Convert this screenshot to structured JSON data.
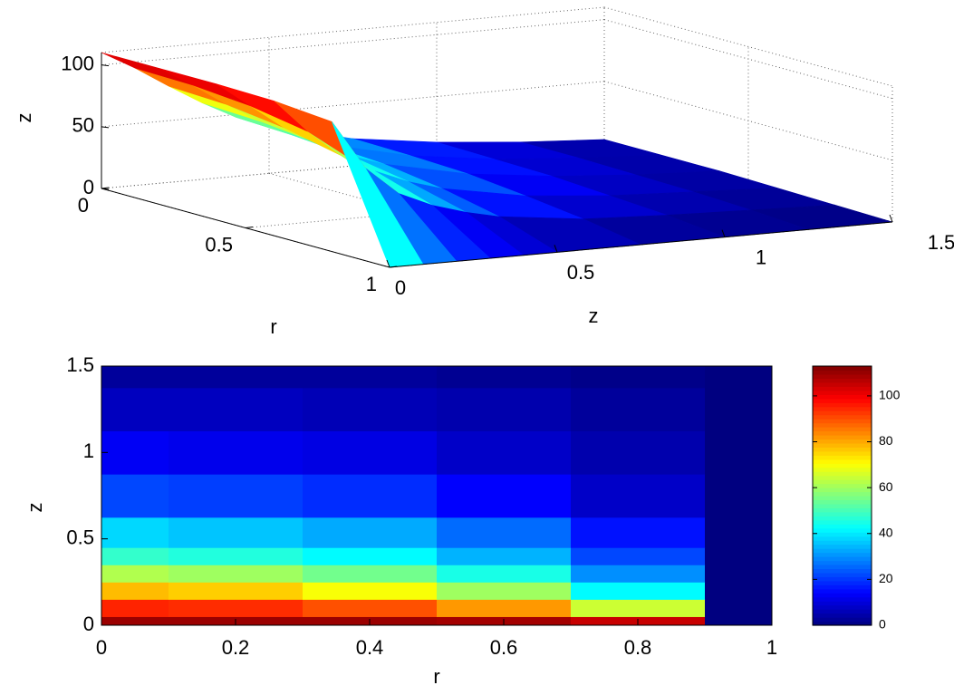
{
  "chart_data": [
    {
      "type": "surface3d",
      "xlabel": "r",
      "ylabel": "z",
      "zlabel": "z",
      "x": [
        0,
        0.2,
        0.4,
        0.6,
        0.8,
        1
      ],
      "y": [
        0,
        0.1,
        0.2,
        0.3,
        0.4,
        0.5,
        0.75,
        1,
        1.25,
        1.5
      ],
      "values": [
        [
          110,
          110,
          110,
          109,
          105,
          0
        ],
        [
          95,
          94,
          90,
          82,
          65,
          0
        ],
        [
          78,
          76,
          70,
          60,
          42,
          0
        ],
        [
          62,
          60,
          55,
          45,
          30,
          0
        ],
        [
          48,
          46,
          42,
          34,
          22,
          0
        ],
        [
          38,
          36,
          33,
          26,
          16,
          0
        ],
        [
          22,
          21,
          19,
          14,
          8,
          0
        ],
        [
          13,
          12,
          11,
          8,
          5,
          0
        ],
        [
          7,
          7,
          6,
          5,
          3,
          0
        ],
        [
          3,
          3,
          3,
          2,
          1,
          0
        ]
      ],
      "xlim": [
        0,
        1
      ],
      "ylim": [
        0,
        1.5
      ],
      "zlim": [
        0,
        110
      ],
      "xticks": [
        0,
        0.5,
        1
      ],
      "yticks": [
        0,
        0.5,
        1,
        1.5
      ],
      "zticks": [
        0,
        50,
        100
      ],
      "colormap": "jet",
      "clim": [
        0,
        113
      ],
      "grid": true
    },
    {
      "type": "heatmap",
      "xlabel": "r",
      "ylabel": "z",
      "x": [
        0,
        0.2,
        0.4,
        0.6,
        0.8,
        1
      ],
      "y": [
        0,
        0.1,
        0.2,
        0.3,
        0.4,
        0.5,
        0.75,
        1,
        1.25,
        1.5
      ],
      "values": [
        [
          110,
          110,
          110,
          109,
          105,
          0
        ],
        [
          95,
          94,
          90,
          82,
          65,
          0
        ],
        [
          78,
          76,
          70,
          60,
          42,
          0
        ],
        [
          62,
          60,
          55,
          45,
          30,
          0
        ],
        [
          48,
          46,
          42,
          34,
          22,
          0
        ],
        [
          38,
          36,
          33,
          26,
          16,
          0
        ],
        [
          22,
          21,
          19,
          14,
          8,
          0
        ],
        [
          13,
          12,
          11,
          8,
          5,
          0
        ],
        [
          7,
          7,
          6,
          5,
          3,
          0
        ],
        [
          3,
          3,
          3,
          2,
          1,
          0
        ]
      ],
      "xlim": [
        0,
        1
      ],
      "ylim": [
        0,
        1.5
      ],
      "xticks": [
        0,
        0.2,
        0.4,
        0.6,
        0.8,
        1
      ],
      "yticks": [
        0,
        0.5,
        1,
        1.5
      ],
      "colormap": "jet",
      "clim": [
        0,
        113
      ],
      "colorbar_ticks": [
        0,
        20,
        40,
        60,
        80,
        100
      ]
    }
  ]
}
